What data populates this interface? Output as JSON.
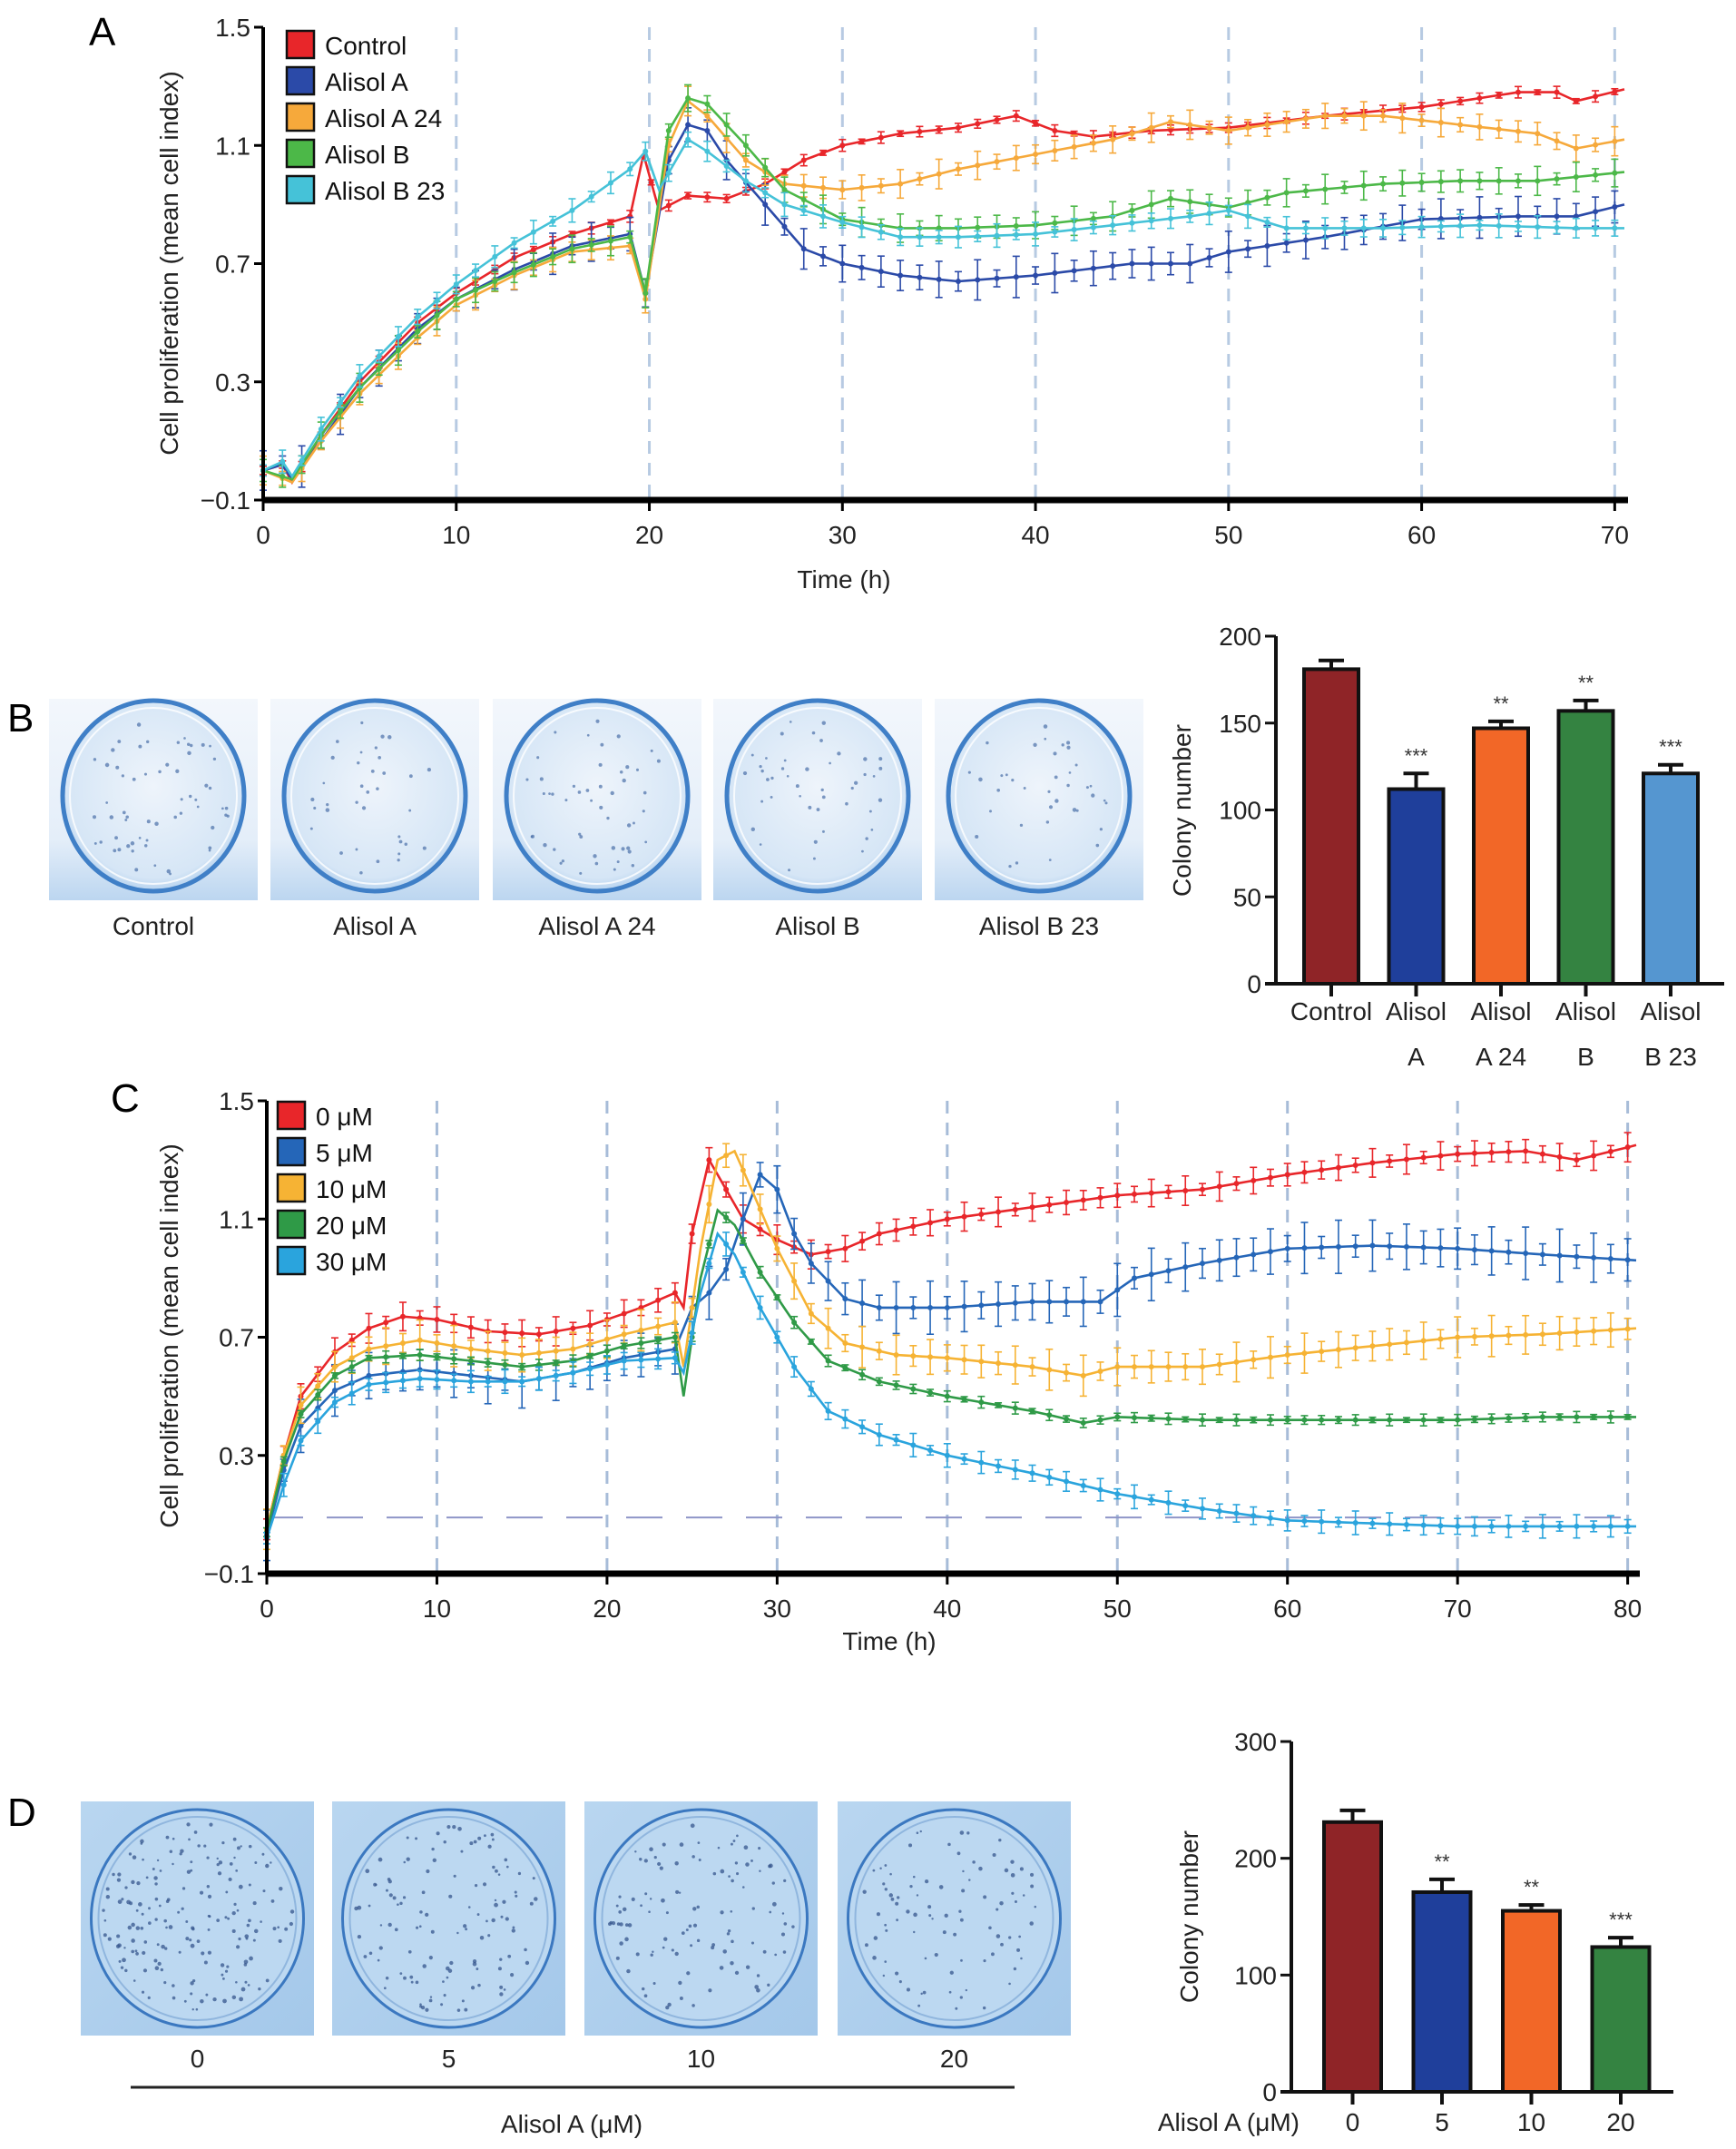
{
  "figure": {
    "panels": [
      "A",
      "B",
      "C",
      "D"
    ]
  },
  "chart_data": [
    {
      "id": "A",
      "type": "line",
      "panel_label": "A",
      "title": "",
      "xlabel": "Time (h)",
      "ylabel": "Cell proliferation (mean cell index)",
      "xlim": [
        0,
        70.5
      ],
      "ylim": [
        -0.1,
        1.5
      ],
      "xticks": [
        0,
        10,
        20,
        30,
        40,
        50,
        60,
        70
      ],
      "yticks": [
        -0.1,
        0.3,
        0.7,
        1.1,
        1.5
      ],
      "ytick_labels": [
        "−0.1",
        "0.3",
        "0.7",
        "1.1",
        "1.5"
      ],
      "vertical_dashed_gridlines_at": [
        10,
        20,
        30,
        40,
        50,
        60,
        70
      ],
      "legend_position": "top-left",
      "error_bars": true,
      "series": [
        {
          "name": "Control",
          "color": "#e8262a",
          "x": [
            0,
            1,
            1.5,
            3,
            5,
            8,
            10,
            13,
            16,
            19,
            19.7,
            20.5,
            22,
            24,
            26,
            28,
            30,
            33,
            36,
            39,
            41,
            43,
            46,
            50,
            55,
            60,
            65,
            67,
            68,
            70.5
          ],
          "y": [
            0.0,
            0.02,
            -0.04,
            0.12,
            0.3,
            0.5,
            0.6,
            0.72,
            0.8,
            0.86,
            1.07,
            0.88,
            0.93,
            0.92,
            0.97,
            1.05,
            1.1,
            1.14,
            1.16,
            1.2,
            1.15,
            1.13,
            1.15,
            1.16,
            1.2,
            1.23,
            1.28,
            1.28,
            1.25,
            1.29
          ],
          "err": 0.02
        },
        {
          "name": "Alisol A",
          "color": "#2b4aa8",
          "x": [
            0,
            1,
            1.5,
            3,
            5,
            8,
            10,
            13,
            16,
            19,
            19.8,
            21,
            22,
            23,
            24,
            26,
            28,
            30,
            33,
            36,
            40,
            45,
            48,
            50,
            55,
            60,
            65,
            68,
            70.5
          ],
          "y": [
            0.0,
            0.02,
            -0.03,
            0.1,
            0.28,
            0.48,
            0.58,
            0.68,
            0.76,
            0.8,
            0.6,
            1.05,
            1.17,
            1.15,
            1.05,
            0.9,
            0.75,
            0.7,
            0.66,
            0.64,
            0.66,
            0.7,
            0.7,
            0.74,
            0.79,
            0.85,
            0.86,
            0.86,
            0.9
          ],
          "err": 0.07
        },
        {
          "name": "Alisol A 24",
          "color": "#f6a93b",
          "x": [
            0,
            1.5,
            3,
            5,
            8,
            10,
            13,
            16,
            19,
            19.8,
            21,
            22,
            23,
            25,
            27,
            30,
            33,
            36,
            40,
            44,
            47,
            50,
            55,
            58,
            62,
            66,
            68,
            70.5
          ],
          "y": [
            0.0,
            -0.04,
            0.1,
            0.26,
            0.45,
            0.56,
            0.66,
            0.74,
            0.76,
            0.58,
            1.1,
            1.25,
            1.2,
            1.05,
            0.97,
            0.95,
            0.97,
            1.02,
            1.07,
            1.12,
            1.18,
            1.15,
            1.2,
            1.2,
            1.17,
            1.14,
            1.09,
            1.12
          ],
          "err": 0.05
        },
        {
          "name": "Alisol B",
          "color": "#4cb848",
          "x": [
            0,
            1.5,
            3,
            5,
            8,
            10,
            13,
            16,
            19,
            19.8,
            21,
            22,
            23,
            25,
            27,
            30,
            33,
            36,
            40,
            44,
            47,
            50,
            53,
            58,
            62,
            66,
            70.5
          ],
          "y": [
            0.0,
            -0.03,
            0.12,
            0.28,
            0.47,
            0.58,
            0.67,
            0.75,
            0.79,
            0.6,
            1.15,
            1.26,
            1.24,
            1.1,
            0.95,
            0.85,
            0.82,
            0.82,
            0.83,
            0.86,
            0.92,
            0.89,
            0.94,
            0.97,
            0.98,
            0.98,
            1.01
          ],
          "err": 0.05
        },
        {
          "name": "Alisol B 23",
          "color": "#45c2d8",
          "x": [
            0,
            1,
            1.5,
            3,
            5,
            8,
            10,
            13,
            16,
            19,
            19.8,
            20.5,
            22,
            23,
            25,
            27,
            30,
            33,
            36,
            40,
            44,
            48,
            50,
            51,
            53,
            58,
            63,
            68,
            70.5
          ],
          "y": [
            0.0,
            0.03,
            -0.02,
            0.14,
            0.32,
            0.52,
            0.63,
            0.77,
            0.88,
            1.02,
            1.08,
            0.95,
            1.12,
            1.08,
            0.98,
            0.9,
            0.84,
            0.79,
            0.79,
            0.8,
            0.83,
            0.86,
            0.88,
            0.86,
            0.82,
            0.82,
            0.83,
            0.82,
            0.82
          ],
          "err": 0.04
        }
      ]
    },
    {
      "id": "B",
      "type": "bar",
      "panel_label": "B",
      "xlabel": "",
      "ylabel": "Colony number",
      "ylim": [
        0,
        200
      ],
      "yticks": [
        0,
        50,
        100,
        150,
        200
      ],
      "categories": [
        "Control",
        "Alisol A",
        "Alisol A 24",
        "Alisol B",
        "Alisol B 23"
      ],
      "category_label_lines": [
        [
          "Control"
        ],
        [
          "Alisol",
          "A"
        ],
        [
          "Alisol",
          "A 24"
        ],
        [
          "Alisol",
          "B"
        ],
        [
          "Alisol",
          "B 23"
        ]
      ],
      "values": [
        181,
        112,
        147,
        157,
        121
      ],
      "errors": [
        5,
        9,
        4,
        6,
        5
      ],
      "significance": [
        "",
        "***",
        "**",
        "**",
        "***"
      ],
      "colors": [
        "#8f2427",
        "#1f3f9b",
        "#f26727",
        "#348341",
        "#5596d0"
      ],
      "dish_images": {
        "labels": [
          "Control",
          "Alisol A",
          "Alisol A 24",
          "Alisol B",
          "Alisol B 23"
        ],
        "description": "colony formation assay dishes, crystal violet stain"
      }
    },
    {
      "id": "C",
      "type": "line",
      "panel_label": "C",
      "title": "",
      "xlabel": "Time (h)",
      "ylabel": "Cell proliferation (mean cell index)",
      "xlim": [
        0,
        80.5
      ],
      "ylim": [
        -0.1,
        1.5
      ],
      "xticks": [
        0,
        10,
        20,
        30,
        40,
        50,
        60,
        70,
        80
      ],
      "yticks": [
        -0.1,
        0.3,
        0.7,
        1.1,
        1.5
      ],
      "ytick_labels": [
        "−0.1",
        "0.3",
        "0.7",
        "1.1",
        "1.5"
      ],
      "vertical_dashed_gridlines_at": [
        10,
        20,
        30,
        40,
        50,
        60,
        70,
        80
      ],
      "horizontal_dashed_reference": 0.09,
      "legend_position": "top-left",
      "error_bars": true,
      "series": [
        {
          "name": "0 μM",
          "color": "#e8262a",
          "x": [
            0,
            1,
            2,
            4,
            6,
            8,
            10,
            13,
            16,
            19,
            22,
            24,
            24.5,
            25,
            26,
            27,
            28,
            30,
            32,
            34,
            36,
            40,
            45,
            50,
            55,
            60,
            65,
            70,
            74,
            77,
            80.5
          ],
          "y": [
            0.05,
            0.3,
            0.5,
            0.65,
            0.73,
            0.77,
            0.76,
            0.72,
            0.71,
            0.74,
            0.8,
            0.85,
            0.8,
            1.05,
            1.3,
            1.2,
            1.1,
            1.03,
            0.98,
            1.0,
            1.05,
            1.1,
            1.14,
            1.18,
            1.2,
            1.25,
            1.29,
            1.32,
            1.33,
            1.3,
            1.35
          ],
          "err": 0.05
        },
        {
          "name": "5 μM",
          "color": "#2566b8",
          "x": [
            0,
            1,
            2,
            4,
            6,
            9,
            12,
            15,
            18,
            21,
            24,
            25,
            26,
            27,
            28,
            29,
            30,
            31,
            32,
            34,
            36,
            40,
            45,
            49,
            51,
            55,
            60,
            65,
            70,
            75,
            80.5
          ],
          "y": [
            0.03,
            0.25,
            0.4,
            0.52,
            0.57,
            0.59,
            0.57,
            0.55,
            0.58,
            0.63,
            0.66,
            0.8,
            0.85,
            0.93,
            1.1,
            1.25,
            1.2,
            1.05,
            0.95,
            0.83,
            0.8,
            0.8,
            0.82,
            0.82,
            0.9,
            0.95,
            1.0,
            1.01,
            1.0,
            0.98,
            0.96
          ],
          "err": 0.09
        },
        {
          "name": "10 μM",
          "color": "#f6b334",
          "x": [
            0,
            1,
            2,
            4,
            6,
            9,
            12,
            15,
            18,
            21,
            24,
            24.5,
            25.5,
            26.5,
            27.5,
            28.5,
            30,
            32,
            34,
            37,
            40,
            45,
            48,
            50,
            55,
            60,
            65,
            70,
            75,
            80.5
          ],
          "y": [
            0.05,
            0.3,
            0.47,
            0.6,
            0.66,
            0.69,
            0.66,
            0.64,
            0.66,
            0.71,
            0.75,
            0.6,
            1.0,
            1.3,
            1.33,
            1.2,
            1.0,
            0.78,
            0.68,
            0.64,
            0.63,
            0.6,
            0.57,
            0.6,
            0.6,
            0.64,
            0.67,
            0.7,
            0.71,
            0.73
          ],
          "err": 0.07
        },
        {
          "name": "20 μM",
          "color": "#2f9a47",
          "x": [
            0,
            1,
            2,
            4,
            6,
            9,
            12,
            15,
            18,
            21,
            24,
            24.5,
            25.5,
            26.5,
            27.5,
            29,
            31,
            33,
            36,
            40,
            45,
            48,
            50,
            55,
            60,
            65,
            70,
            75,
            80.5
          ],
          "y": [
            0.04,
            0.28,
            0.44,
            0.57,
            0.63,
            0.64,
            0.62,
            0.6,
            0.62,
            0.67,
            0.7,
            0.5,
            0.9,
            1.13,
            1.08,
            0.92,
            0.75,
            0.62,
            0.55,
            0.5,
            0.45,
            0.41,
            0.43,
            0.42,
            0.42,
            0.42,
            0.42,
            0.43,
            0.43
          ],
          "err": 0.02
        },
        {
          "name": "30 μM",
          "color": "#2aa4dd",
          "x": [
            0,
            1,
            2,
            4,
            6,
            9,
            12,
            15,
            18,
            21,
            24,
            24.5,
            25.5,
            26.5,
            27.5,
            29,
            31,
            33,
            36,
            40,
            45,
            50,
            55,
            60,
            65,
            70,
            75,
            80.5
          ],
          "y": [
            0.02,
            0.2,
            0.35,
            0.48,
            0.54,
            0.56,
            0.55,
            0.55,
            0.58,
            0.62,
            0.63,
            0.58,
            0.85,
            1.05,
            0.98,
            0.8,
            0.6,
            0.45,
            0.37,
            0.3,
            0.24,
            0.17,
            0.12,
            0.08,
            0.07,
            0.06,
            0.06,
            0.06
          ],
          "err": 0.04
        }
      ]
    },
    {
      "id": "D",
      "type": "bar",
      "panel_label": "D",
      "xlabel": "Alisol A (μM)",
      "ylabel": "Colony number",
      "ylim": [
        0,
        300
      ],
      "yticks": [
        0,
        100,
        200,
        300
      ],
      "categories": [
        "0",
        "5",
        "10",
        "20"
      ],
      "values": [
        231,
        171,
        155,
        124
      ],
      "errors": [
        10,
        11,
        5,
        8
      ],
      "significance": [
        "",
        "**",
        "**",
        "***"
      ],
      "colors": [
        "#8f2427",
        "#1f3f9b",
        "#f26727",
        "#348341"
      ],
      "dish_images": {
        "labels": [
          "0",
          "5",
          "10",
          "20"
        ],
        "group_label": "Alisol A (μM)",
        "description": "colony formation assay dishes, crystal violet stain"
      }
    }
  ]
}
